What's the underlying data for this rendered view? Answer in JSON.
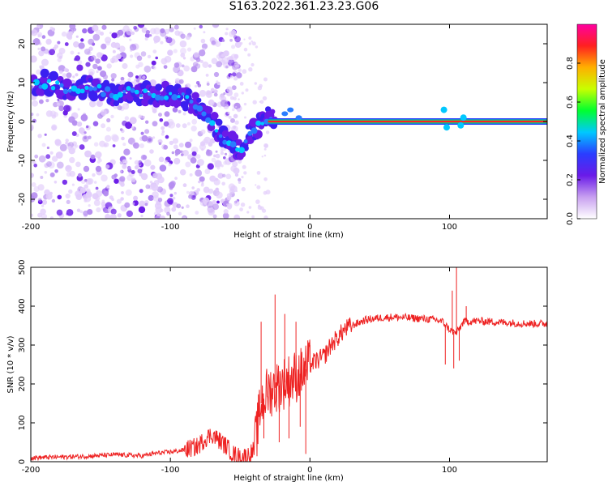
{
  "title": "S163.2022.361.23.23.G06",
  "chart_data": [
    {
      "type": "heatmap",
      "xlabel": "Height of straight line (km)",
      "ylabel": "Frequency (Hz)",
      "xlim": [
        -200,
        170
      ],
      "ylim": [
        -25,
        25
      ],
      "x_ticks": [
        -200,
        -100,
        0,
        100
      ],
      "y_ticks": [
        -20,
        -10,
        0,
        10,
        20
      ],
      "colorbar": {
        "label": "Normalized spectral amplitude",
        "range": [
          0,
          1
        ],
        "ticks": [
          "0.0",
          "0.2",
          "0.4",
          "0.6",
          "0.8"
        ],
        "colors": [
          "#ffffff",
          "#c8a0f0",
          "#6a1be8",
          "#2a3dff",
          "#00c8ff",
          "#00ff30",
          "#c8ff00",
          "#ffb000",
          "#ff2020",
          "#ff00a0"
        ]
      },
      "ridge": {
        "x": [
          -200,
          -190,
          -180,
          -170,
          -160,
          -150,
          -140,
          -130,
          -120,
          -110,
          -100,
          -90,
          -80,
          -70,
          -60,
          -55,
          -50,
          -45,
          -40,
          -35,
          -30,
          -25,
          -20,
          -15,
          -10,
          0,
          10,
          20,
          40,
          60,
          80,
          100,
          120,
          140,
          160,
          170
        ],
        "y": [
          9,
          10,
          9,
          8,
          9,
          8,
          7,
          8,
          7,
          7,
          7,
          6,
          4,
          0,
          -5,
          -6,
          -7,
          -4,
          -2,
          -1,
          1,
          0,
          1,
          1,
          0,
          0,
          0,
          0,
          0,
          0,
          0,
          0,
          0,
          0,
          0,
          0
        ]
      }
    },
    {
      "type": "line",
      "xlabel": "Height of straight line (km)",
      "ylabel": "SNR (10 * v/v)",
      "xlim": [
        -200,
        170
      ],
      "ylim": [
        0,
        500
      ],
      "x_ticks": [
        -200,
        -100,
        0,
        100
      ],
      "y_ticks": [
        0,
        100,
        200,
        300,
        400,
        500
      ],
      "color": "#ee2222",
      "series": [
        {
          "x": [
            -200,
            -180,
            -160,
            -140,
            -120,
            -110,
            -100,
            -90,
            -80,
            -75,
            -70,
            -65,
            -60,
            -55,
            -50,
            -45,
            -40,
            -35,
            -30,
            -25,
            -20,
            -15,
            -10,
            -5,
            0,
            5,
            10,
            15,
            20,
            25,
            30,
            40,
            50,
            60,
            70,
            80,
            90,
            95,
            100,
            105,
            110,
            120,
            130,
            140,
            150,
            160,
            170
          ],
          "y": [
            10,
            12,
            14,
            18,
            15,
            22,
            25,
            30,
            40,
            60,
            70,
            55,
            40,
            20,
            12,
            15,
            30,
            150,
            180,
            190,
            200,
            210,
            220,
            230,
            250,
            260,
            270,
            300,
            320,
            340,
            350,
            365,
            370,
            372,
            370,
            368,
            365,
            360,
            340,
            330,
            360,
            362,
            360,
            358,
            356,
            355,
            355
          ]
        }
      ],
      "spikes": [
        {
          "x": -35,
          "y": 360
        },
        {
          "x": -33,
          "y": 60
        },
        {
          "x": -25,
          "y": 430
        },
        {
          "x": -22,
          "y": 50
        },
        {
          "x": -18,
          "y": 380
        },
        {
          "x": -15,
          "y": 60
        },
        {
          "x": -10,
          "y": 360
        },
        {
          "x": -7,
          "y": 90
        },
        {
          "x": -3,
          "y": 20
        },
        {
          "x": 0,
          "y": 300
        },
        {
          "x": 97,
          "y": 250
        },
        {
          "x": 102,
          "y": 440
        },
        {
          "x": 103,
          "y": 240
        },
        {
          "x": 105,
          "y": 500
        },
        {
          "x": 107,
          "y": 260
        },
        {
          "x": 112,
          "y": 400
        }
      ]
    }
  ]
}
